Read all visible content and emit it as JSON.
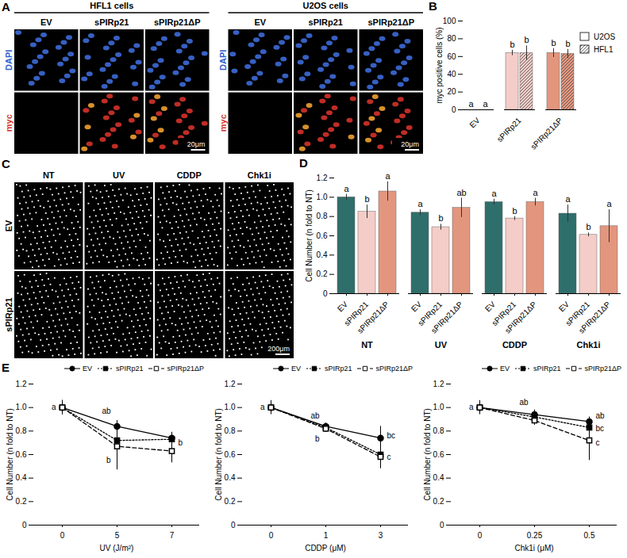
{
  "chart_data": [
    {
      "type": "image",
      "panel": "A",
      "groups": [
        "HFL1 cells",
        "U2OS cells"
      ],
      "columns": [
        "EV",
        "sPIRp21",
        "sPIRp21ΔP"
      ],
      "rows": [
        "DAPI",
        "myc"
      ],
      "scale_bar": "20μm"
    },
    {
      "type": "bar",
      "panel": "B",
      "categories": [
        "EV",
        "sPIRp21",
        "sPIRp21ΔP"
      ],
      "colors": [
        "#2e6e6b",
        "#f5cdc8",
        "#e3967e"
      ],
      "series": [
        {
          "name": "U2OS",
          "values": [
            0,
            64,
            64
          ],
          "err": [
            0,
            3,
            5
          ],
          "letters": [
            "a",
            "b",
            "b"
          ]
        },
        {
          "name": "HFL1",
          "values": [
            0,
            64,
            63
          ],
          "err": [
            0,
            8,
            5
          ],
          "letters": [
            "a",
            "b",
            "b"
          ]
        }
      ],
      "y_label": "myc positive cells (%)",
      "ylim": [
        0,
        100
      ],
      "yticks": [
        0,
        20,
        40,
        60,
        80,
        100
      ],
      "legend": "right"
    },
    {
      "type": "image",
      "panel": "C",
      "columns": [
        "NT",
        "UV",
        "CDDP",
        "Chk1i"
      ],
      "rows": [
        "EV",
        "sPIRp21"
      ],
      "scale_bar": "200μm"
    },
    {
      "type": "bar",
      "panel": "D",
      "groups": [
        "NT",
        "UV",
        "CDDP",
        "Chk1i"
      ],
      "categories": [
        "EV",
        "sPIRp21",
        "sPIRp21ΔP"
      ],
      "colors": [
        "#2e6e6b",
        "#f5cdc8",
        "#e3967e"
      ],
      "values": [
        [
          1.0,
          0.85,
          1.06
        ],
        [
          0.84,
          0.69,
          0.89
        ],
        [
          0.95,
          0.78,
          0.95
        ],
        [
          0.83,
          0.61,
          0.7
        ]
      ],
      "err": [
        [
          0.03,
          0.07,
          0.1
        ],
        [
          0.03,
          0.03,
          0.1
        ],
        [
          0.03,
          0.02,
          0.04
        ],
        [
          0.09,
          0.02,
          0.17
        ]
      ],
      "letters": [
        [
          "a",
          "b",
          "a"
        ],
        [
          "a",
          "b",
          "ab"
        ],
        [
          "a",
          "b",
          "a"
        ],
        [
          "a",
          "b",
          "a"
        ]
      ],
      "y_label": "Cell Number (n fold to NT)",
      "ylim": [
        0,
        1.2
      ],
      "yticks": [
        0,
        0.2,
        0.4,
        0.6,
        0.8,
        {
          "value": 1,
          "label": "1.0"
        },
        1.2
      ]
    },
    {
      "type": "line",
      "panel": "E",
      "x_label": "UV (J/m²)",
      "categories": [
        "0",
        "5",
        "7"
      ],
      "series": [
        {
          "name": "EV",
          "color": "#000000",
          "marker": "circle",
          "line_style": "solid",
          "values": [
            1.0,
            0.84,
            0.74
          ],
          "err": [
            0.06,
            0.05,
            0.05
          ]
        },
        {
          "name": "sPIRp21",
          "color": "#000000",
          "marker": "square",
          "line_style": "dotted",
          "values": [
            1.0,
            0.72,
            0.73
          ],
          "err": [
            0.06,
            0.06,
            0.05
          ]
        },
        {
          "name": "sPIRp21ΔP",
          "color": "#000000",
          "marker": "square-open",
          "line_style": "dashed",
          "values": [
            1.0,
            0.67,
            0.63
          ],
          "err": [
            0.06,
            0.2,
            0.1
          ]
        }
      ],
      "annotations": [
        {
          "x": "0",
          "y": 1.0,
          "text": "a"
        },
        {
          "x": "5",
          "y": 0.97,
          "text": "ab"
        },
        {
          "x": "5",
          "y": 0.55,
          "text": "b"
        },
        {
          "x": "7",
          "y": 0.7,
          "text": "b"
        }
      ],
      "y_label": "Cell Number (n fold to NT)",
      "ylim": [
        0,
        1.2
      ],
      "yticks": [
        0,
        0.2,
        0.4,
        0.6,
        0.8,
        {
          "value": 1,
          "label": "1.0"
        },
        1.2
      ],
      "legend": "top"
    },
    {
      "type": "line",
      "x_label": "CDDP (μM)",
      "categories": [
        "0",
        "1",
        "3"
      ],
      "series": [
        {
          "name": "EV",
          "color": "#000000",
          "marker": "circle",
          "line_style": "solid",
          "values": [
            1.0,
            0.84,
            0.74
          ],
          "err": [
            0.05,
            0.03,
            0.1
          ]
        },
        {
          "name": "sPIRp21",
          "color": "#000000",
          "marker": "square",
          "line_style": "dotted",
          "values": [
            1.0,
            0.83,
            0.6
          ],
          "err": [
            0.05,
            0.03,
            0.08
          ]
        },
        {
          "name": "sPIRp21ΔP",
          "color": "#000000",
          "marker": "square-open",
          "line_style": "dashed",
          "values": [
            1.0,
            0.82,
            0.58
          ],
          "err": [
            0.06,
            0.03,
            0.1
          ]
        }
      ],
      "annotations": [
        {
          "x": "0",
          "y": 1.0,
          "text": "a"
        },
        {
          "x": "1",
          "y": 0.93,
          "text": "ab"
        },
        {
          "x": "1",
          "y": 0.73,
          "text": "b"
        },
        {
          "x": "3",
          "y": 0.76,
          "text": "bc"
        },
        {
          "x": "3",
          "y": 0.58,
          "text": "c"
        }
      ],
      "y_label": "Cell Number (n fold to NT)",
      "ylim": [
        0,
        1.2
      ],
      "yticks": [
        0,
        0.2,
        0.4,
        0.6,
        0.8,
        {
          "value": 1,
          "label": "1.0"
        },
        1.2
      ],
      "legend": "top"
    },
    {
      "type": "line",
      "x_label": "Chk1i (μM)",
      "categories": [
        "0",
        "0.25",
        "0.5"
      ],
      "series": [
        {
          "name": "EV",
          "color": "#000000",
          "marker": "circle",
          "line_style": "solid",
          "values": [
            1.0,
            0.94,
            0.88
          ],
          "err": [
            0.05,
            0.04,
            0.04
          ]
        },
        {
          "name": "sPIRp21",
          "color": "#000000",
          "marker": "square",
          "line_style": "dotted",
          "values": [
            1.0,
            0.92,
            0.83
          ],
          "err": [
            0.05,
            0.04,
            0.05
          ]
        },
        {
          "name": "sPIRp21ΔP",
          "color": "#000000",
          "marker": "square-open",
          "line_style": "dashed",
          "values": [
            1.0,
            0.89,
            0.72
          ],
          "err": [
            0.06,
            0.04,
            0.17
          ]
        }
      ],
      "annotations": [
        {
          "x": "0",
          "y": 1.0,
          "text": "a"
        },
        {
          "x": "0.25",
          "y": 1.04,
          "text": "ab"
        },
        {
          "x": "0.5",
          "y": 0.93,
          "text": "ab"
        },
        {
          "x": "0.5",
          "y": 0.82,
          "text": "bc"
        },
        {
          "x": "0.5",
          "y": 0.7,
          "text": "c"
        }
      ],
      "y_label": "Cell Number (n fold to NT)",
      "ylim": [
        0,
        1.2
      ],
      "yticks": [
        0,
        0.2,
        0.4,
        0.6,
        0.8,
        {
          "value": 1,
          "label": "1.0"
        },
        1.2
      ],
      "legend": "top"
    }
  ]
}
